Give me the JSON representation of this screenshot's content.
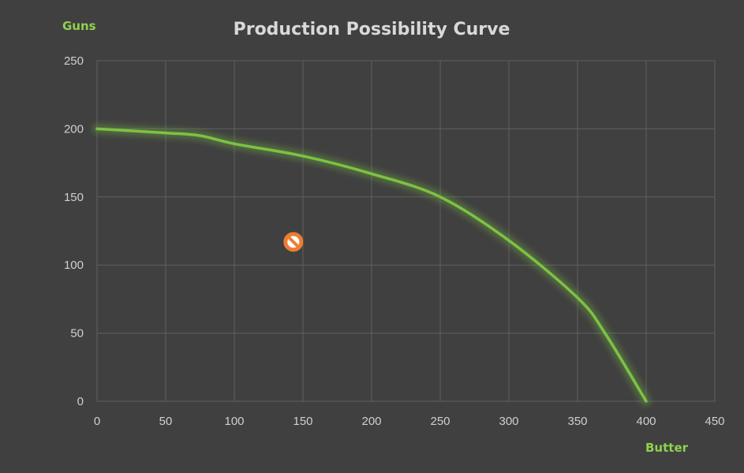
{
  "chart_data": {
    "type": "line",
    "title": "Production Possibility Curve",
    "xlabel": "Butter",
    "ylabel": "Guns",
    "xlim": [
      0,
      450
    ],
    "ylim": [
      0,
      250
    ],
    "x_ticks": [
      0,
      50,
      100,
      150,
      200,
      250,
      300,
      350,
      400,
      450
    ],
    "y_ticks": [
      0,
      50,
      100,
      150,
      200,
      250
    ],
    "grid": true,
    "legend": "none",
    "series": [
      {
        "color": "#7cc242",
        "points": [
          {
            "x": 0,
            "y": 200
          },
          {
            "x": 50,
            "y": 197
          },
          {
            "x": 75,
            "y": 195
          },
          {
            "x": 100,
            "y": 189
          },
          {
            "x": 150,
            "y": 180
          },
          {
            "x": 200,
            "y": 167
          },
          {
            "x": 250,
            "y": 150
          },
          {
            "x": 300,
            "y": 118
          },
          {
            "x": 350,
            "y": 76
          },
          {
            "x": 370,
            "y": 50
          },
          {
            "x": 400,
            "y": 0
          }
        ]
      }
    ],
    "markers": [
      {
        "x": 143,
        "y": 117,
        "icon": "prohibited-icon",
        "color": "#ed7d31"
      }
    ]
  }
}
